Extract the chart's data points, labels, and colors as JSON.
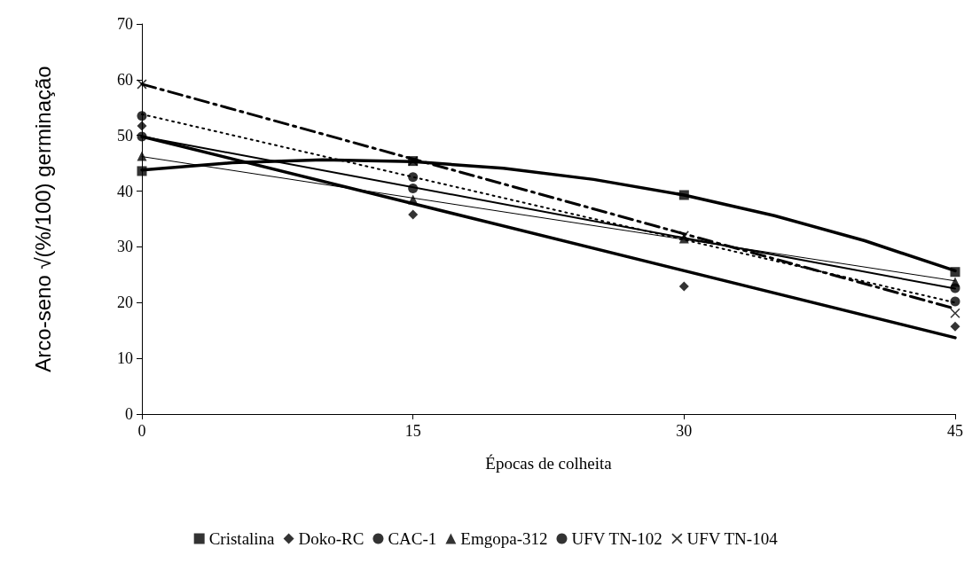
{
  "chart_data": {
    "type": "scatter",
    "xlabel": "Épocas de colheita",
    "ylabel": "Arco-seno √(%/100) germinação",
    "xlim": [
      0,
      45
    ],
    "xticks": [
      0,
      15,
      30,
      45
    ],
    "ylim": [
      0,
      70
    ],
    "yticks": [
      0,
      10,
      20,
      30,
      40,
      50,
      60,
      70
    ],
    "grid": false,
    "legend": "bottom",
    "series": [
      {
        "name": "Cristalina",
        "marker": "square",
        "color": "#000000",
        "x": [
          0,
          15,
          30,
          45
        ],
        "values": [
          43.6,
          45.4,
          39.3,
          25.5
        ]
      },
      {
        "name": "Doko-RC",
        "marker": "diamond",
        "color": "#000000",
        "x": [
          0,
          15,
          30,
          45
        ],
        "values": [
          51.7,
          35.8,
          22.9,
          15.7
        ]
      },
      {
        "name": "CAC-1",
        "marker": "circle",
        "color": "#000000",
        "x": [
          0,
          15,
          30,
          45
        ],
        "values": [
          49.8,
          40.5,
          null,
          22.6
        ]
      },
      {
        "name": "Emgopa-312",
        "marker": "triangle",
        "color": "#000000",
        "x": [
          0,
          15,
          30,
          45
        ],
        "values": [
          46.3,
          38.5,
          31.5,
          23.7
        ]
      },
      {
        "name": "UFV TN-102",
        "marker": "circle",
        "color": "#000000",
        "x": [
          0,
          15,
          30,
          45
        ],
        "values": [
          53.5,
          42.5,
          null,
          20.2
        ]
      },
      {
        "name": "UFV TN-104",
        "marker": "cross",
        "color": "#000000",
        "x": [
          0,
          15,
          30,
          45
        ],
        "values": [
          59.2,
          45.4,
          32.0,
          18.1
        ]
      },
      {
        "type": "line",
        "marker": "none",
        "line_style": "solid",
        "color": "#000000",
        "x": [
          0,
          5,
          10,
          15,
          20,
          25,
          30,
          35,
          40,
          45
        ],
        "values": [
          43.8,
          45.1,
          45.6,
          45.3,
          44.1,
          42.1,
          39.3,
          35.6,
          31.1,
          25.7
        ]
      },
      {
        "type": "line",
        "marker": "none",
        "line_style": "solid",
        "color": "#000000",
        "x": [
          0,
          45
        ],
        "values": [
          49.8,
          13.7
        ]
      },
      {
        "type": "line",
        "marker": "none",
        "line_style": "solid",
        "color": "#000000",
        "x": [
          0,
          45
        ],
        "values": [
          49.8,
          22.5
        ]
      },
      {
        "type": "line",
        "marker": "none",
        "line_style": "solid",
        "color": "#000000",
        "x": [
          0,
          45
        ],
        "values": [
          46.2,
          23.9
        ]
      },
      {
        "type": "line",
        "marker": "none",
        "line_style": "dotted",
        "color": "#000000",
        "x": [
          0,
          45
        ],
        "values": [
          53.8,
          20.0
        ]
      },
      {
        "type": "line",
        "marker": "none",
        "line_style": "dashed",
        "color": "#000000",
        "x": [
          0,
          45
        ],
        "values": [
          59.2,
          18.9
        ]
      }
    ]
  }
}
